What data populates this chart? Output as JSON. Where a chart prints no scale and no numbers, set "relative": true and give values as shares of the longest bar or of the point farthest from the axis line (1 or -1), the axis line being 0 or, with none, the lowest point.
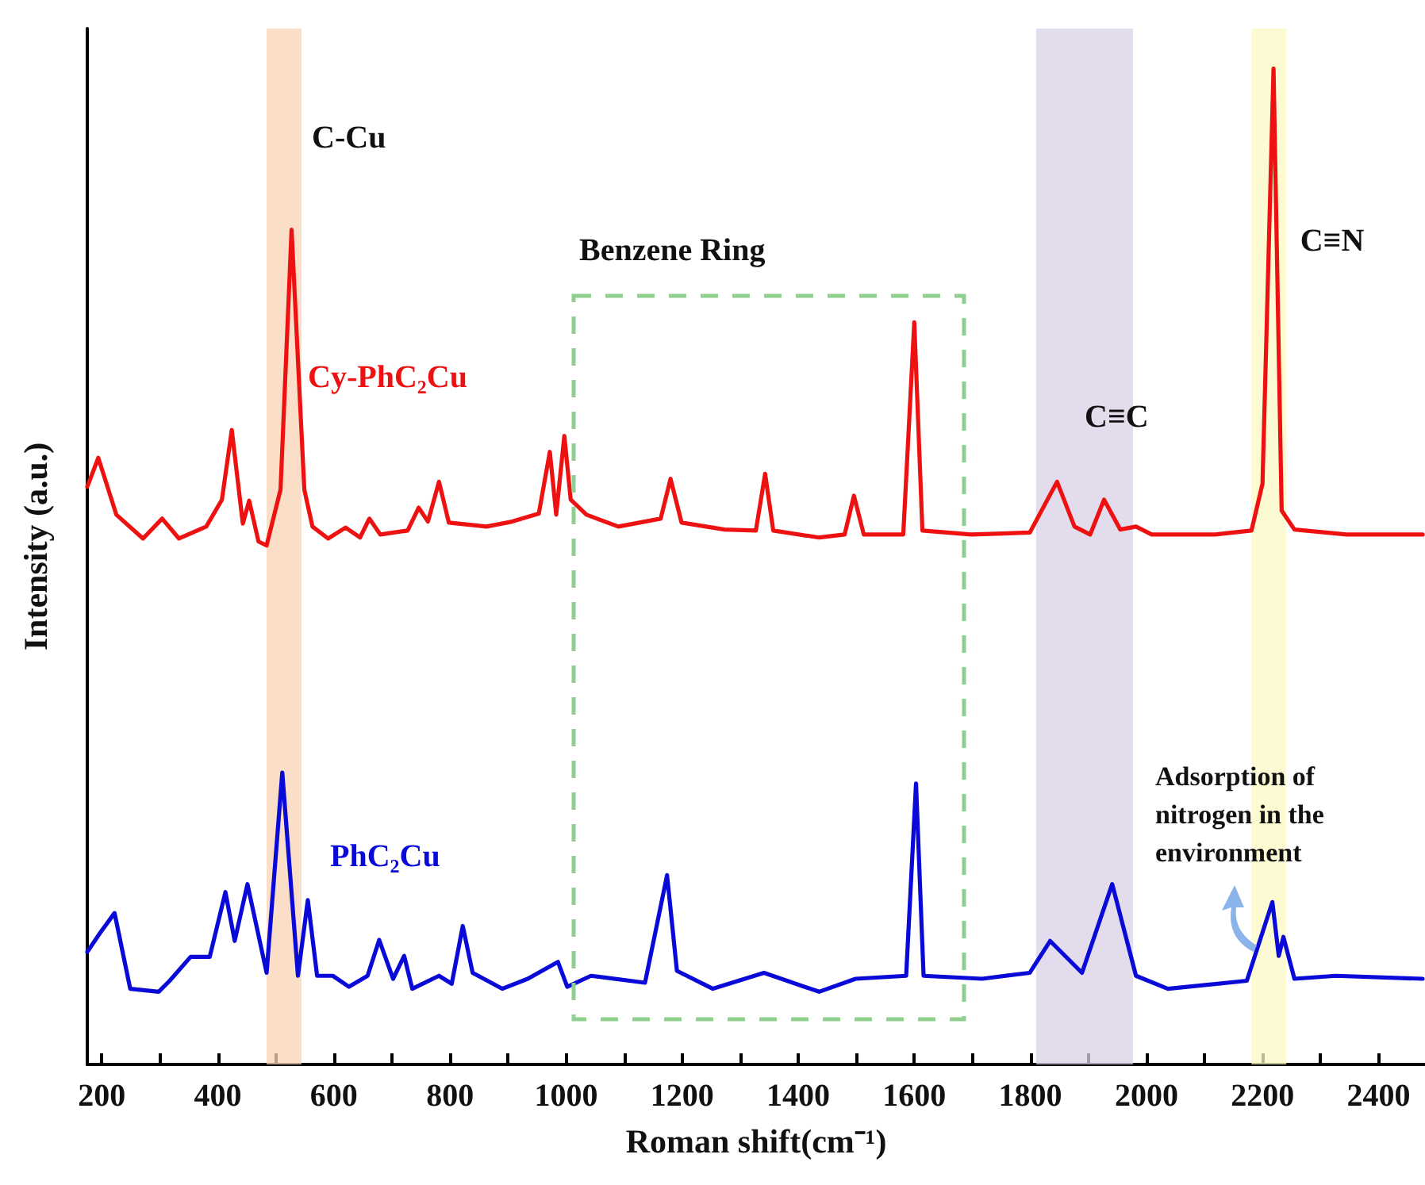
{
  "chart_data": {
    "type": "line",
    "relative": true,
    "xlabel": "Roman shift(cm⁻¹)",
    "ylabel": "Intensity (a.u.)",
    "xlim": [
      175,
      2480
    ],
    "xticks": [
      200,
      {
        "value": 300,
        "label": null
      },
      400,
      {
        "value": 500,
        "label": null
      },
      600,
      {
        "value": 700,
        "label": null
      },
      800,
      {
        "value": 900,
        "label": null
      },
      1000,
      {
        "value": 1100,
        "label": null
      },
      1200,
      {
        "value": 1300,
        "label": null
      },
      1400,
      {
        "value": 1500,
        "label": null
      },
      1600,
      {
        "value": 1700,
        "label": null
      },
      1800,
      {
        "value": 1900,
        "label": null
      },
      2000,
      {
        "value": 2100,
        "label": null
      },
      2200,
      {
        "value": 2300,
        "label": null
      },
      2400
    ],
    "legend": false,
    "grid": false,
    "marker": "none",
    "line_style": "solid",
    "series": [
      {
        "name": "Cy-PhC₂Cu",
        "color": "#ee1111",
        "x": [
          175,
          194,
          225,
          271,
          304,
          333,
          380,
          407,
          424,
          443,
          454,
          470,
          484,
          508,
          527,
          549,
          563,
          590,
          620,
          645,
          661,
          680,
          727,
          746,
          762,
          781,
          798,
          863,
          907,
          953,
          972,
          983,
          997,
          1008,
          1035,
          1090,
          1163,
          1180,
          1199,
          1273,
          1327,
          1343,
          1357,
          1436,
          1480,
          1496,
          1513,
          1581,
          1600,
          1614,
          1698,
          1799,
          1846,
          1876,
          1903,
          1927,
          1955,
          1982,
          2009,
          2118,
          2181,
          2200,
          2219,
          2233,
          2255,
          2345,
          2476
        ],
        "values": [
          0.58,
          0.609,
          0.552,
          0.528,
          0.548,
          0.528,
          0.54,
          0.567,
          0.637,
          0.543,
          0.566,
          0.525,
          0.521,
          0.577,
          0.838,
          0.577,
          0.54,
          0.528,
          0.539,
          0.529,
          0.548,
          0.532,
          0.536,
          0.559,
          0.545,
          0.585,
          0.544,
          0.54,
          0.545,
          0.553,
          0.615,
          0.552,
          0.631,
          0.567,
          0.552,
          0.54,
          0.548,
          0.588,
          0.544,
          0.537,
          0.536,
          0.593,
          0.536,
          0.529,
          0.532,
          0.571,
          0.532,
          0.532,
          0.745,
          0.536,
          0.532,
          0.534,
          0.585,
          0.54,
          0.532,
          0.567,
          0.537,
          0.54,
          0.532,
          0.532,
          0.536,
          0.583,
          1,
          0.556,
          0.537,
          0.532,
          0.532
        ]
      },
      {
        "name": "PhC₂Cu",
        "color": "#0a0ad8",
        "x": [
          175,
          197,
          222,
          249,
          298,
          317,
          353,
          386,
          413,
          429,
          451,
          484,
          511,
          538,
          555,
          571,
          598,
          626,
          658,
          678,
          702,
          721,
          735,
          781,
          803,
          822,
          839,
          890,
          934,
          986,
          1002,
          1043,
          1136,
          1174,
          1191,
          1253,
          1341,
          1436,
          1499,
          1586,
          1603,
          1616,
          1717,
          1799,
          1834,
          1889,
          1941,
          1982,
          2037,
          2173,
          2217,
          2228,
          2236,
          2255,
          2326,
          2476
        ],
        "values": [
          0.113,
          0.132,
          0.152,
          0.076,
          0.073,
          0.084,
          0.108,
          0.108,
          0.173,
          0.124,
          0.181,
          0.092,
          0.293,
          0.089,
          0.165,
          0.089,
          0.089,
          0.078,
          0.089,
          0.125,
          0.086,
          0.109,
          0.076,
          0.089,
          0.081,
          0.139,
          0.092,
          0.076,
          0.086,
          0.103,
          0.078,
          0.089,
          0.082,
          0.19,
          0.094,
          0.076,
          0.092,
          0.073,
          0.086,
          0.089,
          0.282,
          0.089,
          0.086,
          0.092,
          0.124,
          0.092,
          0.181,
          0.089,
          0.076,
          0.084,
          0.163,
          0.109,
          0.128,
          0.086,
          0.089,
          0.086
        ]
      }
    ],
    "bands": [
      {
        "axis": "x",
        "from": 484,
        "to": 544,
        "label": "C-Cu",
        "color": "#f9d3b4"
      },
      {
        "axis": "x",
        "from": 1810,
        "to": 1977,
        "label": "C≡C",
        "color": "#d9d0e6"
      },
      {
        "axis": "x",
        "from": 2181,
        "to": 2241,
        "label": "C≡N",
        "color": "#fbf8c4"
      }
    ],
    "annotations": [
      "Benzene Ring",
      "Adsorption of nitrogen in the environment"
    ]
  }
}
